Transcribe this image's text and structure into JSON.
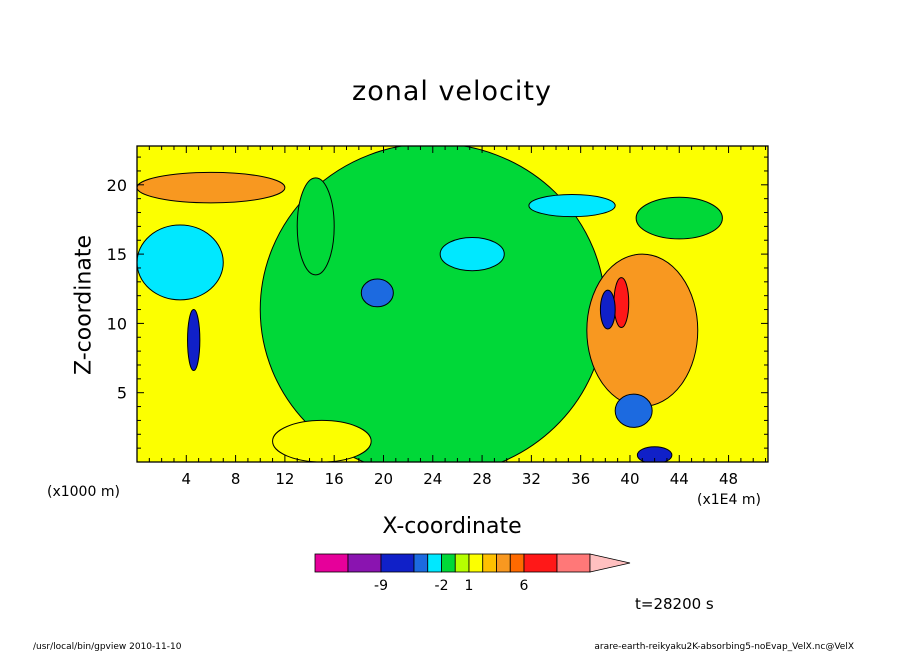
{
  "chart_data": {
    "type": "heatmap",
    "title": "zonal velocity",
    "xlabel": "X-coordinate",
    "ylabel": "Z-coordinate",
    "x_unit_note": "(x1000 m)",
    "x_scale_note": "(x1E4 m)",
    "x_ticks": [
      4,
      8,
      12,
      16,
      20,
      24,
      28,
      32,
      36,
      40,
      44,
      48
    ],
    "y_ticks": [
      5,
      10,
      15,
      20
    ],
    "xlim": [
      0,
      51.2
    ],
    "ylim": [
      0,
      22.8
    ],
    "colorbar": {
      "levels": [
        "-9",
        "-2",
        "1",
        "6"
      ],
      "colors": [
        "#e6009a",
        "#8a14b0",
        "#1020c8",
        "#1c6ae0",
        "#00e8ff",
        "#00d838",
        "#b6ff00",
        "#fcff00",
        "#ffc000",
        "#f89820",
        "#ff6a00",
        "#ff1818",
        "#ff7878",
        "#ffc0c0"
      ]
    },
    "background_color": "#fcff00",
    "time_label": "t=28200 s",
    "footer_left": "/usr/local/bin/gpview  2010-11-10",
    "footer_right": "arare-earth-reikyaku2K-absorbing5-noEvap_VelX.nc@VelX",
    "features": [
      {
        "x": 24,
        "y": 11,
        "rx": 14,
        "ry": 12,
        "color": "#00d838"
      },
      {
        "x": 6,
        "y": 19.8,
        "rx": 6,
        "ry": 1.1,
        "color": "#f89820"
      },
      {
        "x": 3.5,
        "y": 14.4,
        "rx": 3.5,
        "ry": 2.7,
        "color": "#00e8ff"
      },
      {
        "x": 4.6,
        "y": 8.8,
        "rx": 0.5,
        "ry": 2.2,
        "color": "#1020c8"
      },
      {
        "x": 41,
        "y": 9.5,
        "rx": 4.5,
        "ry": 5.5,
        "color": "#f89820"
      },
      {
        "x": 39.3,
        "y": 11.5,
        "rx": 0.6,
        "ry": 1.8,
        "color": "#ff1818"
      },
      {
        "x": 38.2,
        "y": 11,
        "rx": 0.6,
        "ry": 1.4,
        "color": "#1020c8"
      },
      {
        "x": 35.3,
        "y": 18.5,
        "rx": 3.5,
        "ry": 0.8,
        "color": "#00e8ff"
      },
      {
        "x": 19.5,
        "y": 12.2,
        "rx": 1.3,
        "ry": 1,
        "color": "#1c6ae0"
      },
      {
        "x": 27.2,
        "y": 15,
        "rx": 2.6,
        "ry": 1.2,
        "color": "#00e8ff"
      },
      {
        "x": 40.3,
        "y": 3.7,
        "rx": 1.5,
        "ry": 1.2,
        "color": "#1c6ae0"
      },
      {
        "x": 42,
        "y": 0.5,
        "rx": 1.4,
        "ry": 0.6,
        "color": "#1020c8"
      },
      {
        "x": 14.5,
        "y": 17,
        "rx": 1.5,
        "ry": 3.5,
        "color": "#00d838"
      },
      {
        "x": 44,
        "y": 17.6,
        "rx": 3.5,
        "ry": 1.5,
        "color": "#00d838"
      },
      {
        "x": 15,
        "y": 1.5,
        "rx": 4,
        "ry": 1.5,
        "color": "#fcff00"
      }
    ]
  }
}
